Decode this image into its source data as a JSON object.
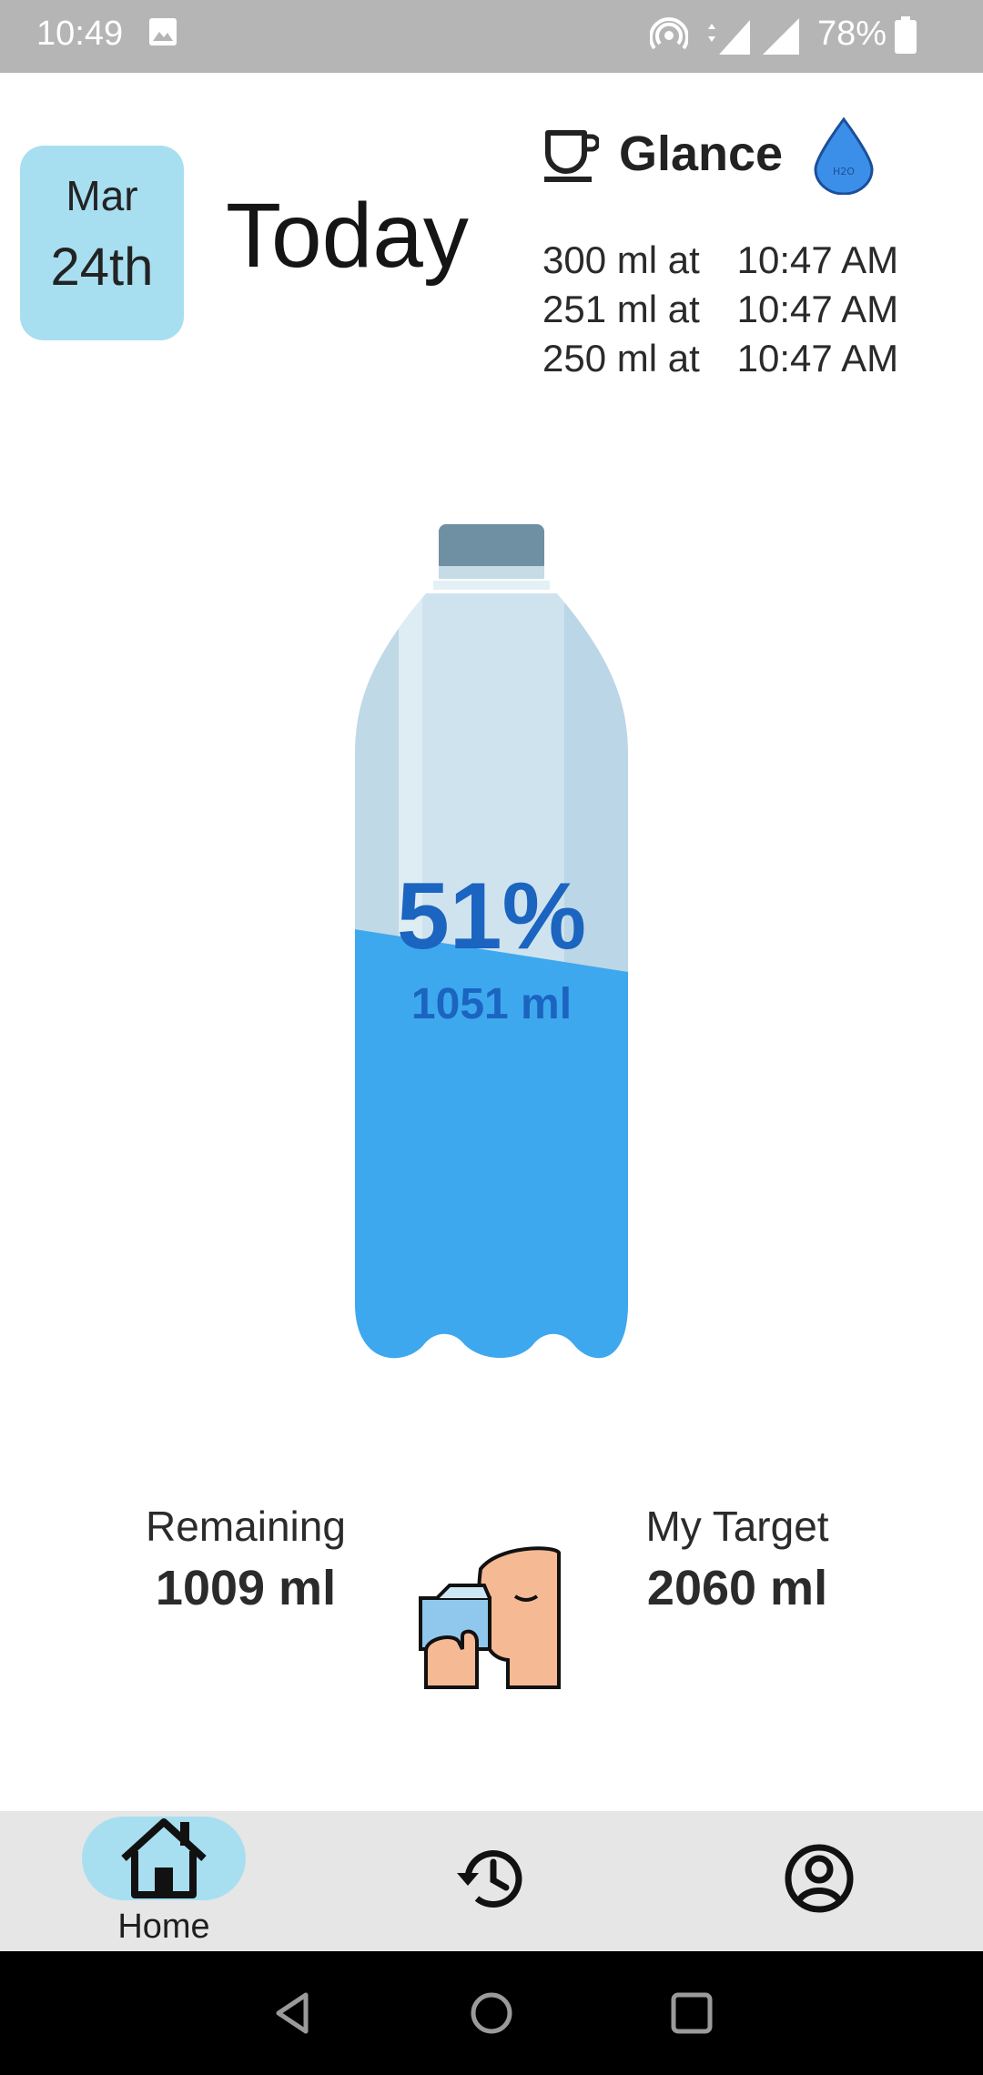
{
  "status_bar": {
    "time": "10:49",
    "battery": "78%",
    "network": "4G"
  },
  "header": {
    "date_month": "Mar",
    "date_day": "24th",
    "title": "Today"
  },
  "glance": {
    "title": "Glance",
    "entries": [
      {
        "amount": "300 ml at",
        "time": "10:47 AM"
      },
      {
        "amount": "251 ml at",
        "time": "10:47 AM"
      },
      {
        "amount": "250 ml at",
        "time": "10:47 AM"
      }
    ]
  },
  "progress": {
    "percent_label": "51%",
    "consumed_label": "1051 ml",
    "fill_fraction": 0.51
  },
  "stats": {
    "remaining_label": "Remaining",
    "remaining_value": "1009 ml",
    "target_label": "My Target",
    "target_value": "2060 ml"
  },
  "bottom_nav": {
    "home_label": "Home"
  },
  "colors": {
    "accent_light": "#a7dff0",
    "water": "#3ea8ef",
    "progress_text": "#1b64c0",
    "status_bar": "#b5b5b5"
  },
  "icons": {
    "glance": "cup-icon",
    "drop": "water-drop-icon",
    "home": "home-icon",
    "history": "history-icon",
    "profile": "profile-icon"
  }
}
